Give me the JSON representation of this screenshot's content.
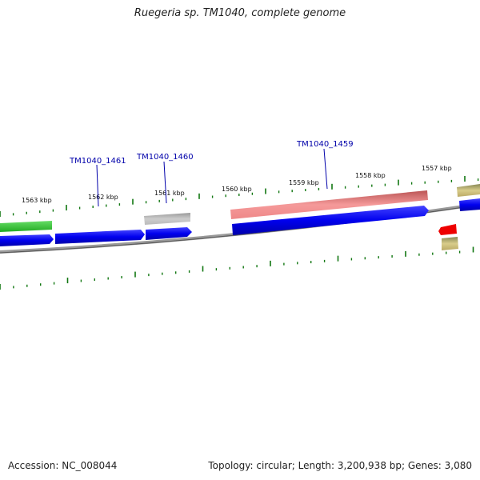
{
  "title": "Ruegeria sp. TM1040, complete genome",
  "footer": {
    "accession": "Accession: NC_008044",
    "topology": "Topology: circular; Length: 3,200,938 bp; Genes: 3,080"
  },
  "kbp_labels": [
    "1563 kbp",
    "1562 kbp",
    "1561 kbp",
    "1560 kbp",
    "1559 kbp",
    "1558 kbp",
    "1557 kbp"
  ],
  "gene_labels": [
    "TM1040_1461",
    "TM1040_1460",
    "TM1040_1459"
  ],
  "colors": {
    "cds": "#0000ee",
    "rrna": "#33cc33",
    "pseudo": "#aaaaaa",
    "highlight": "#ee8888",
    "trna": "#ee0000",
    "misc": "#bbaa66",
    "tick": "#117711",
    "backbone": "#777777"
  }
}
